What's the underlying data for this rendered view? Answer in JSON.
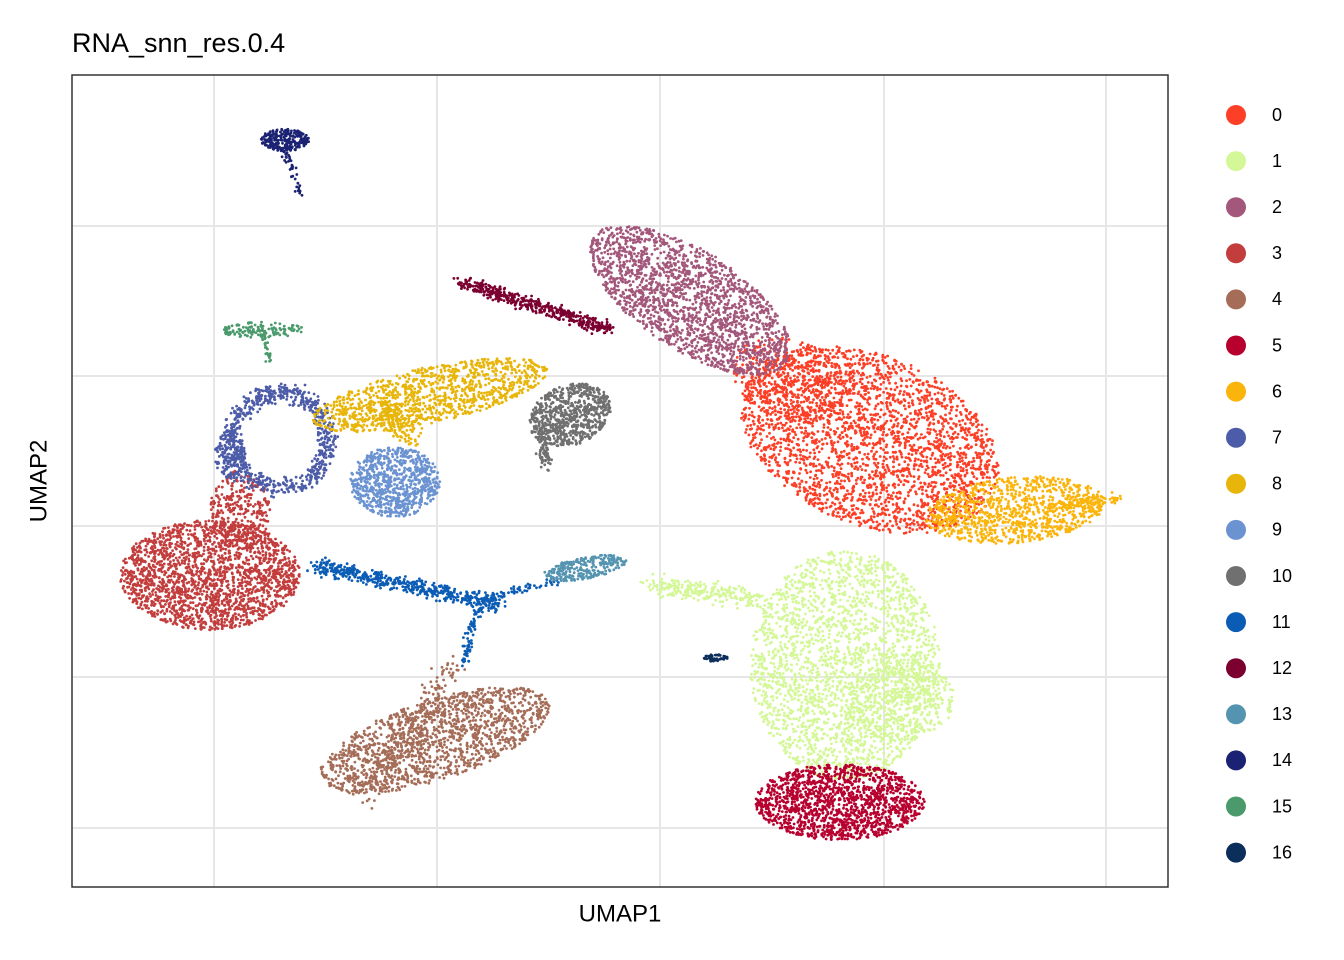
{
  "chart_data": {
    "type": "scatter",
    "title": "RNA_snn_res.0.4",
    "x_label": "UMAP1",
    "y_label": "UMAP2",
    "grid": true,
    "series": [
      {
        "name": "0",
        "color": "#fc3f26"
      },
      {
        "name": "1",
        "color": "#d4f797"
      },
      {
        "name": "2",
        "color": "#a3577a"
      },
      {
        "name": "3",
        "color": "#c33d3d"
      },
      {
        "name": "4",
        "color": "#a56d58"
      },
      {
        "name": "5",
        "color": "#b8002f"
      },
      {
        "name": "6",
        "color": "#fbb40b"
      },
      {
        "name": "7",
        "color": "#4c5ca8"
      },
      {
        "name": "8",
        "color": "#e8b50a"
      },
      {
        "name": "9",
        "color": "#6b93d1"
      },
      {
        "name": "10",
        "color": "#707070"
      },
      {
        "name": "11",
        "color": "#0b5cb5"
      },
      {
        "name": "12",
        "color": "#7b0030"
      },
      {
        "name": "13",
        "color": "#5494b0"
      },
      {
        "name": "14",
        "color": "#1b2273"
      },
      {
        "name": "15",
        "color": "#4a9a6c"
      },
      {
        "name": "16",
        "color": "#0c2e5a"
      }
    ]
  }
}
